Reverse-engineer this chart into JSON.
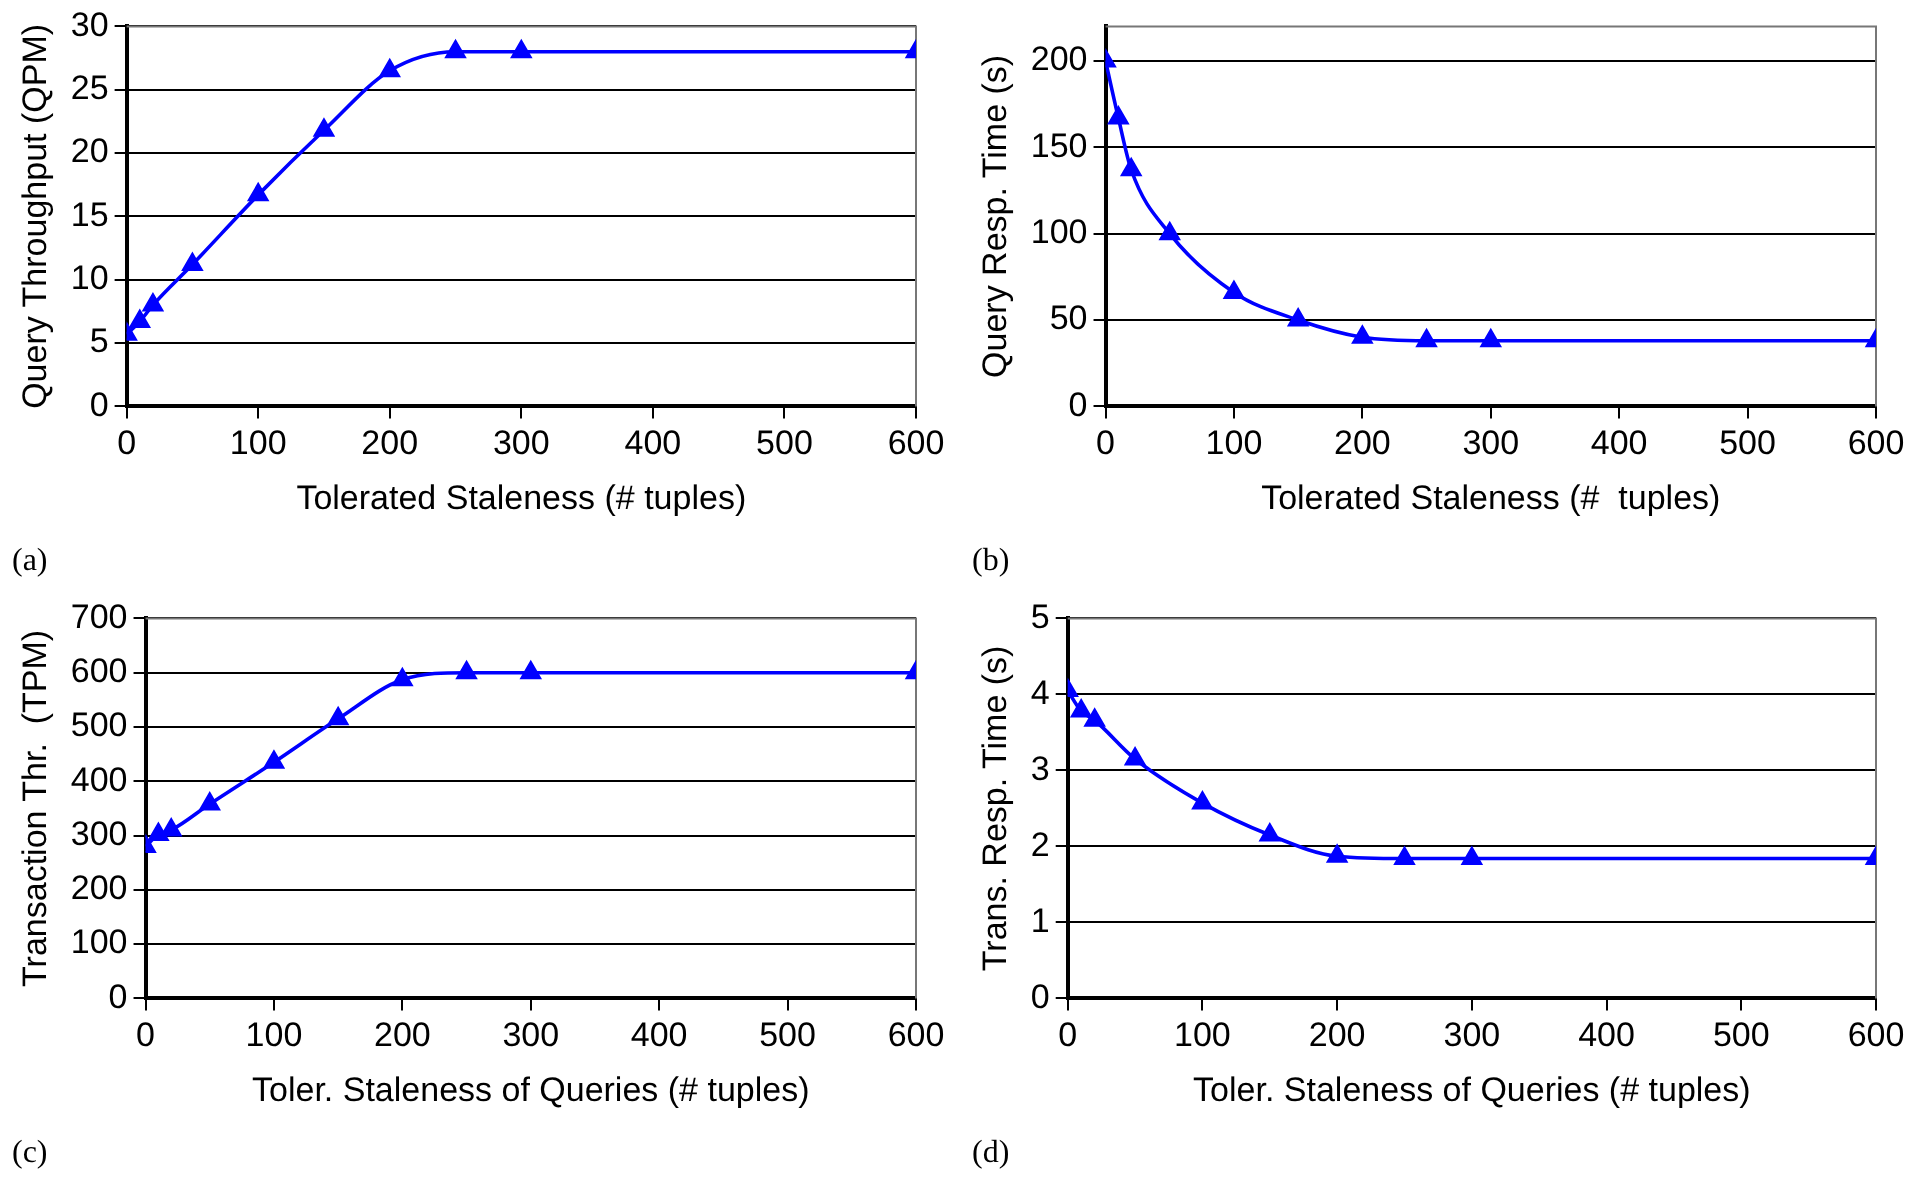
{
  "chart_data": [
    {
      "type": "line",
      "xlabel": "Tolerated Staleness (# tuples)",
      "ylabel": "Query Throughput (QPM)",
      "annotations": [
        "(a)"
      ],
      "x": [
        0,
        10,
        20,
        50,
        100,
        150,
        200,
        250,
        300,
        600
      ],
      "series": [
        {
          "color": "#0000ff",
          "values": [
            5.7,
            6.7,
            8,
            11.2,
            16.7,
            21.8,
            26.5,
            28,
            28,
            28
          ]
        }
      ],
      "xlim": [
        0,
        600
      ],
      "xticks": [
        0,
        100,
        200,
        300,
        400,
        500,
        600
      ],
      "ylim": [
        0,
        30
      ],
      "yticks": [
        0,
        5,
        10,
        15,
        20,
        25,
        30
      ],
      "grid": "y",
      "marker": "triangle",
      "line_style": "solid"
    },
    {
      "type": "line",
      "xlabel": "Tolerated Staleness (#  tuples)",
      "ylabel": "Query Resp. Time (s)",
      "annotations": [
        "(b)"
      ],
      "x": [
        0,
        10,
        20,
        50,
        100,
        150,
        200,
        250,
        300,
        600
      ],
      "series": [
        {
          "color": "#0000ff",
          "values": [
            200,
            167,
            137,
            100,
            66,
            50,
            40,
            38,
            38,
            38
          ]
        }
      ],
      "xlim": [
        0,
        600
      ],
      "xticks": [
        0,
        100,
        200,
        300,
        400,
        500,
        600
      ],
      "ylim": [
        0,
        220
      ],
      "yticks": [
        0,
        50,
        100,
        150,
        200
      ],
      "grid": "y",
      "marker": "triangle",
      "line_style": "solid"
    },
    {
      "type": "line",
      "xlabel": "Toler. Staleness of Queries (# tuples)",
      "ylabel": "Transaction Thr.  (TPM)",
      "annotations": [
        "(c)"
      ],
      "x": [
        0,
        10,
        20,
        50,
        100,
        150,
        200,
        250,
        300,
        600
      ],
      "series": [
        {
          "color": "#0000ff",
          "values": [
            280,
            302,
            310,
            358,
            435,
            515,
            587,
            600,
            600,
            600
          ]
        }
      ],
      "xlim": [
        0,
        600
      ],
      "xticks": [
        0,
        100,
        200,
        300,
        400,
        500,
        600
      ],
      "ylim": [
        0,
        700
      ],
      "yticks": [
        0,
        100,
        200,
        300,
        400,
        500,
        600,
        700
      ],
      "grid": "y",
      "marker": "triangle",
      "line_style": "solid"
    },
    {
      "type": "line",
      "xlabel": "Toler. Staleness of Queries (# tuples)",
      "ylabel": "Trans. Resp. Time (s)",
      "annotations": [
        "(d)"
      ],
      "x": [
        0,
        10,
        20,
        50,
        100,
        150,
        200,
        250,
        300,
        600
      ],
      "series": [
        {
          "color": "#0000ff",
          "values": [
            4.05,
            3.78,
            3.66,
            3.15,
            2.57,
            2.15,
            1.87,
            1.84,
            1.84,
            1.84
          ]
        }
      ],
      "xlim": [
        0,
        600
      ],
      "xticks": [
        0,
        100,
        200,
        300,
        400,
        500,
        600
      ],
      "ylim": [
        0,
        5
      ],
      "yticks": [
        0,
        1,
        2,
        3,
        4,
        5
      ],
      "grid": "y",
      "marker": "triangle",
      "line_style": "solid"
    }
  ]
}
